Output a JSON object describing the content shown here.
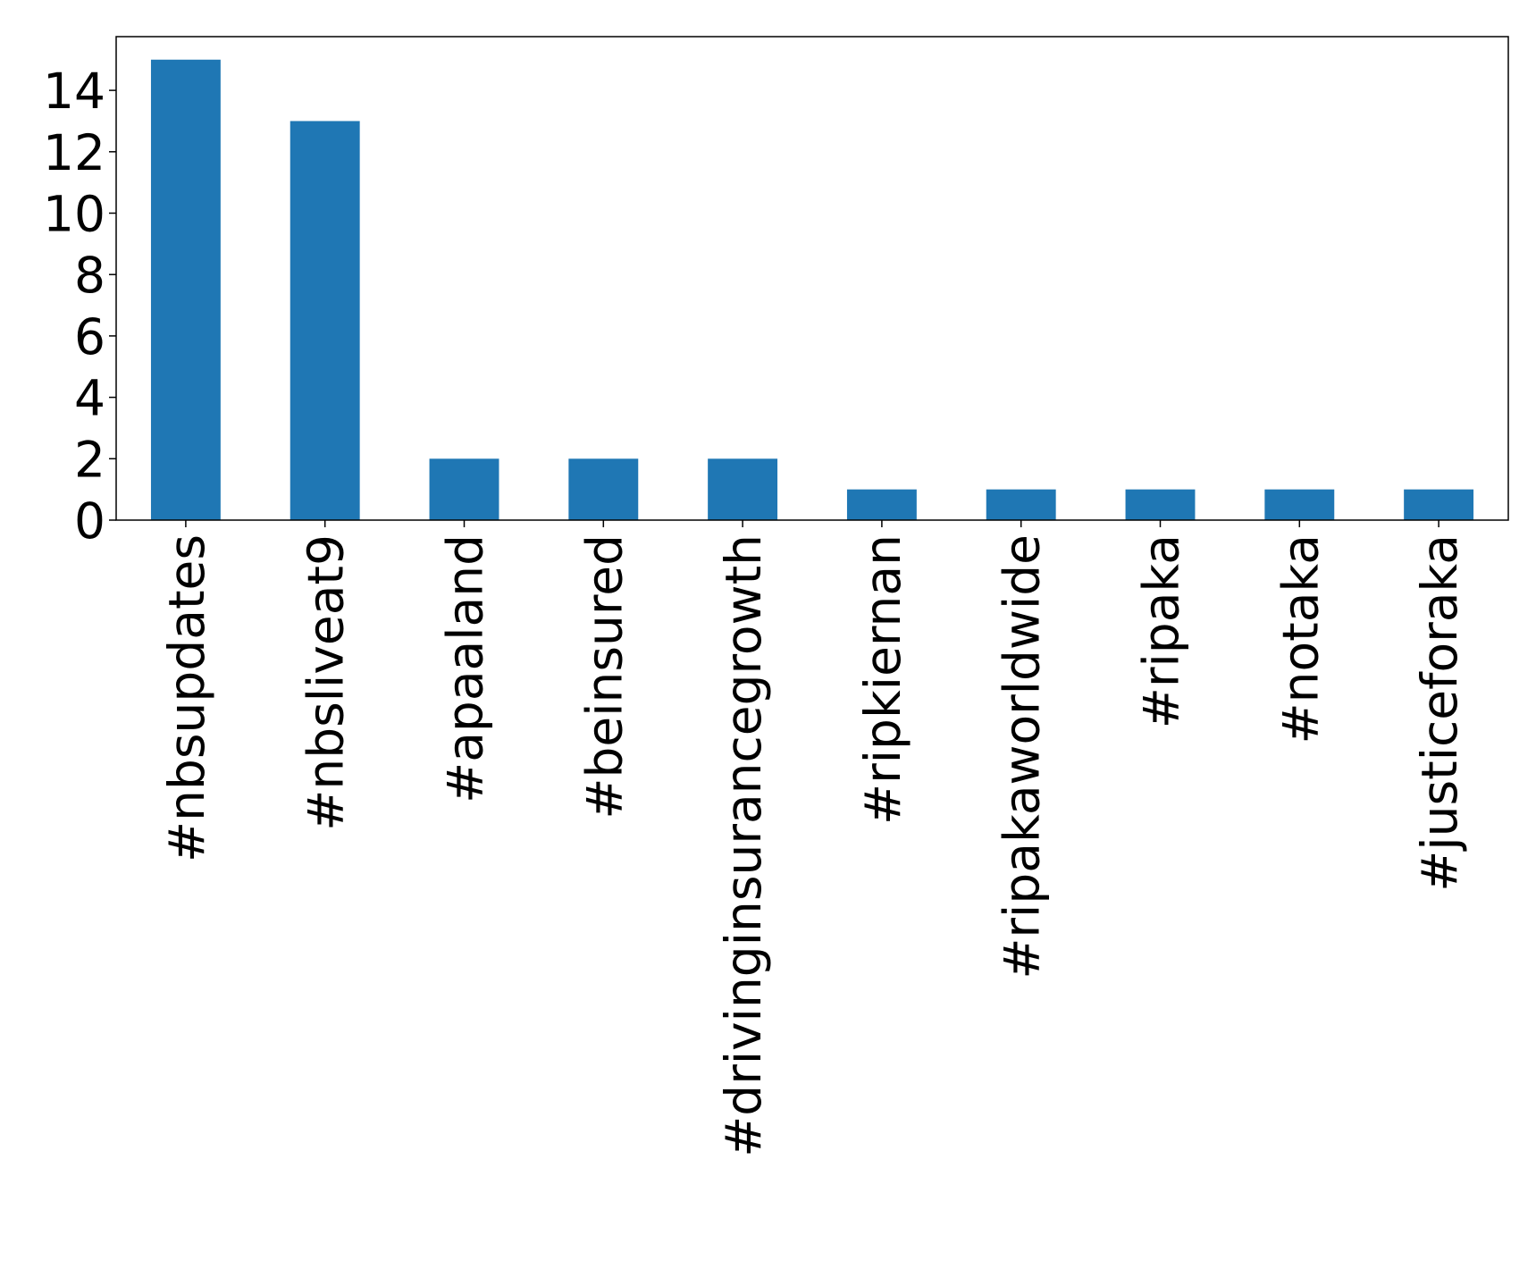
{
  "chart_data": {
    "type": "bar",
    "categories": [
      "#nbsupdates",
      "#nbsliveat9",
      "#apaaland",
      "#beinsured",
      "#drivinginsurancegrowth",
      "#ripkiernan",
      "#ripakaworldwide",
      "#ripaka",
      "#notaka",
      "#justiceforaka"
    ],
    "values": [
      15,
      13,
      2,
      2,
      2,
      1,
      1,
      1,
      1,
      1
    ],
    "color": "#1f77b4",
    "ylim": [
      0,
      15.75
    ],
    "yticks": [
      0,
      2,
      4,
      6,
      8,
      10,
      12,
      14
    ],
    "grid": false
  }
}
